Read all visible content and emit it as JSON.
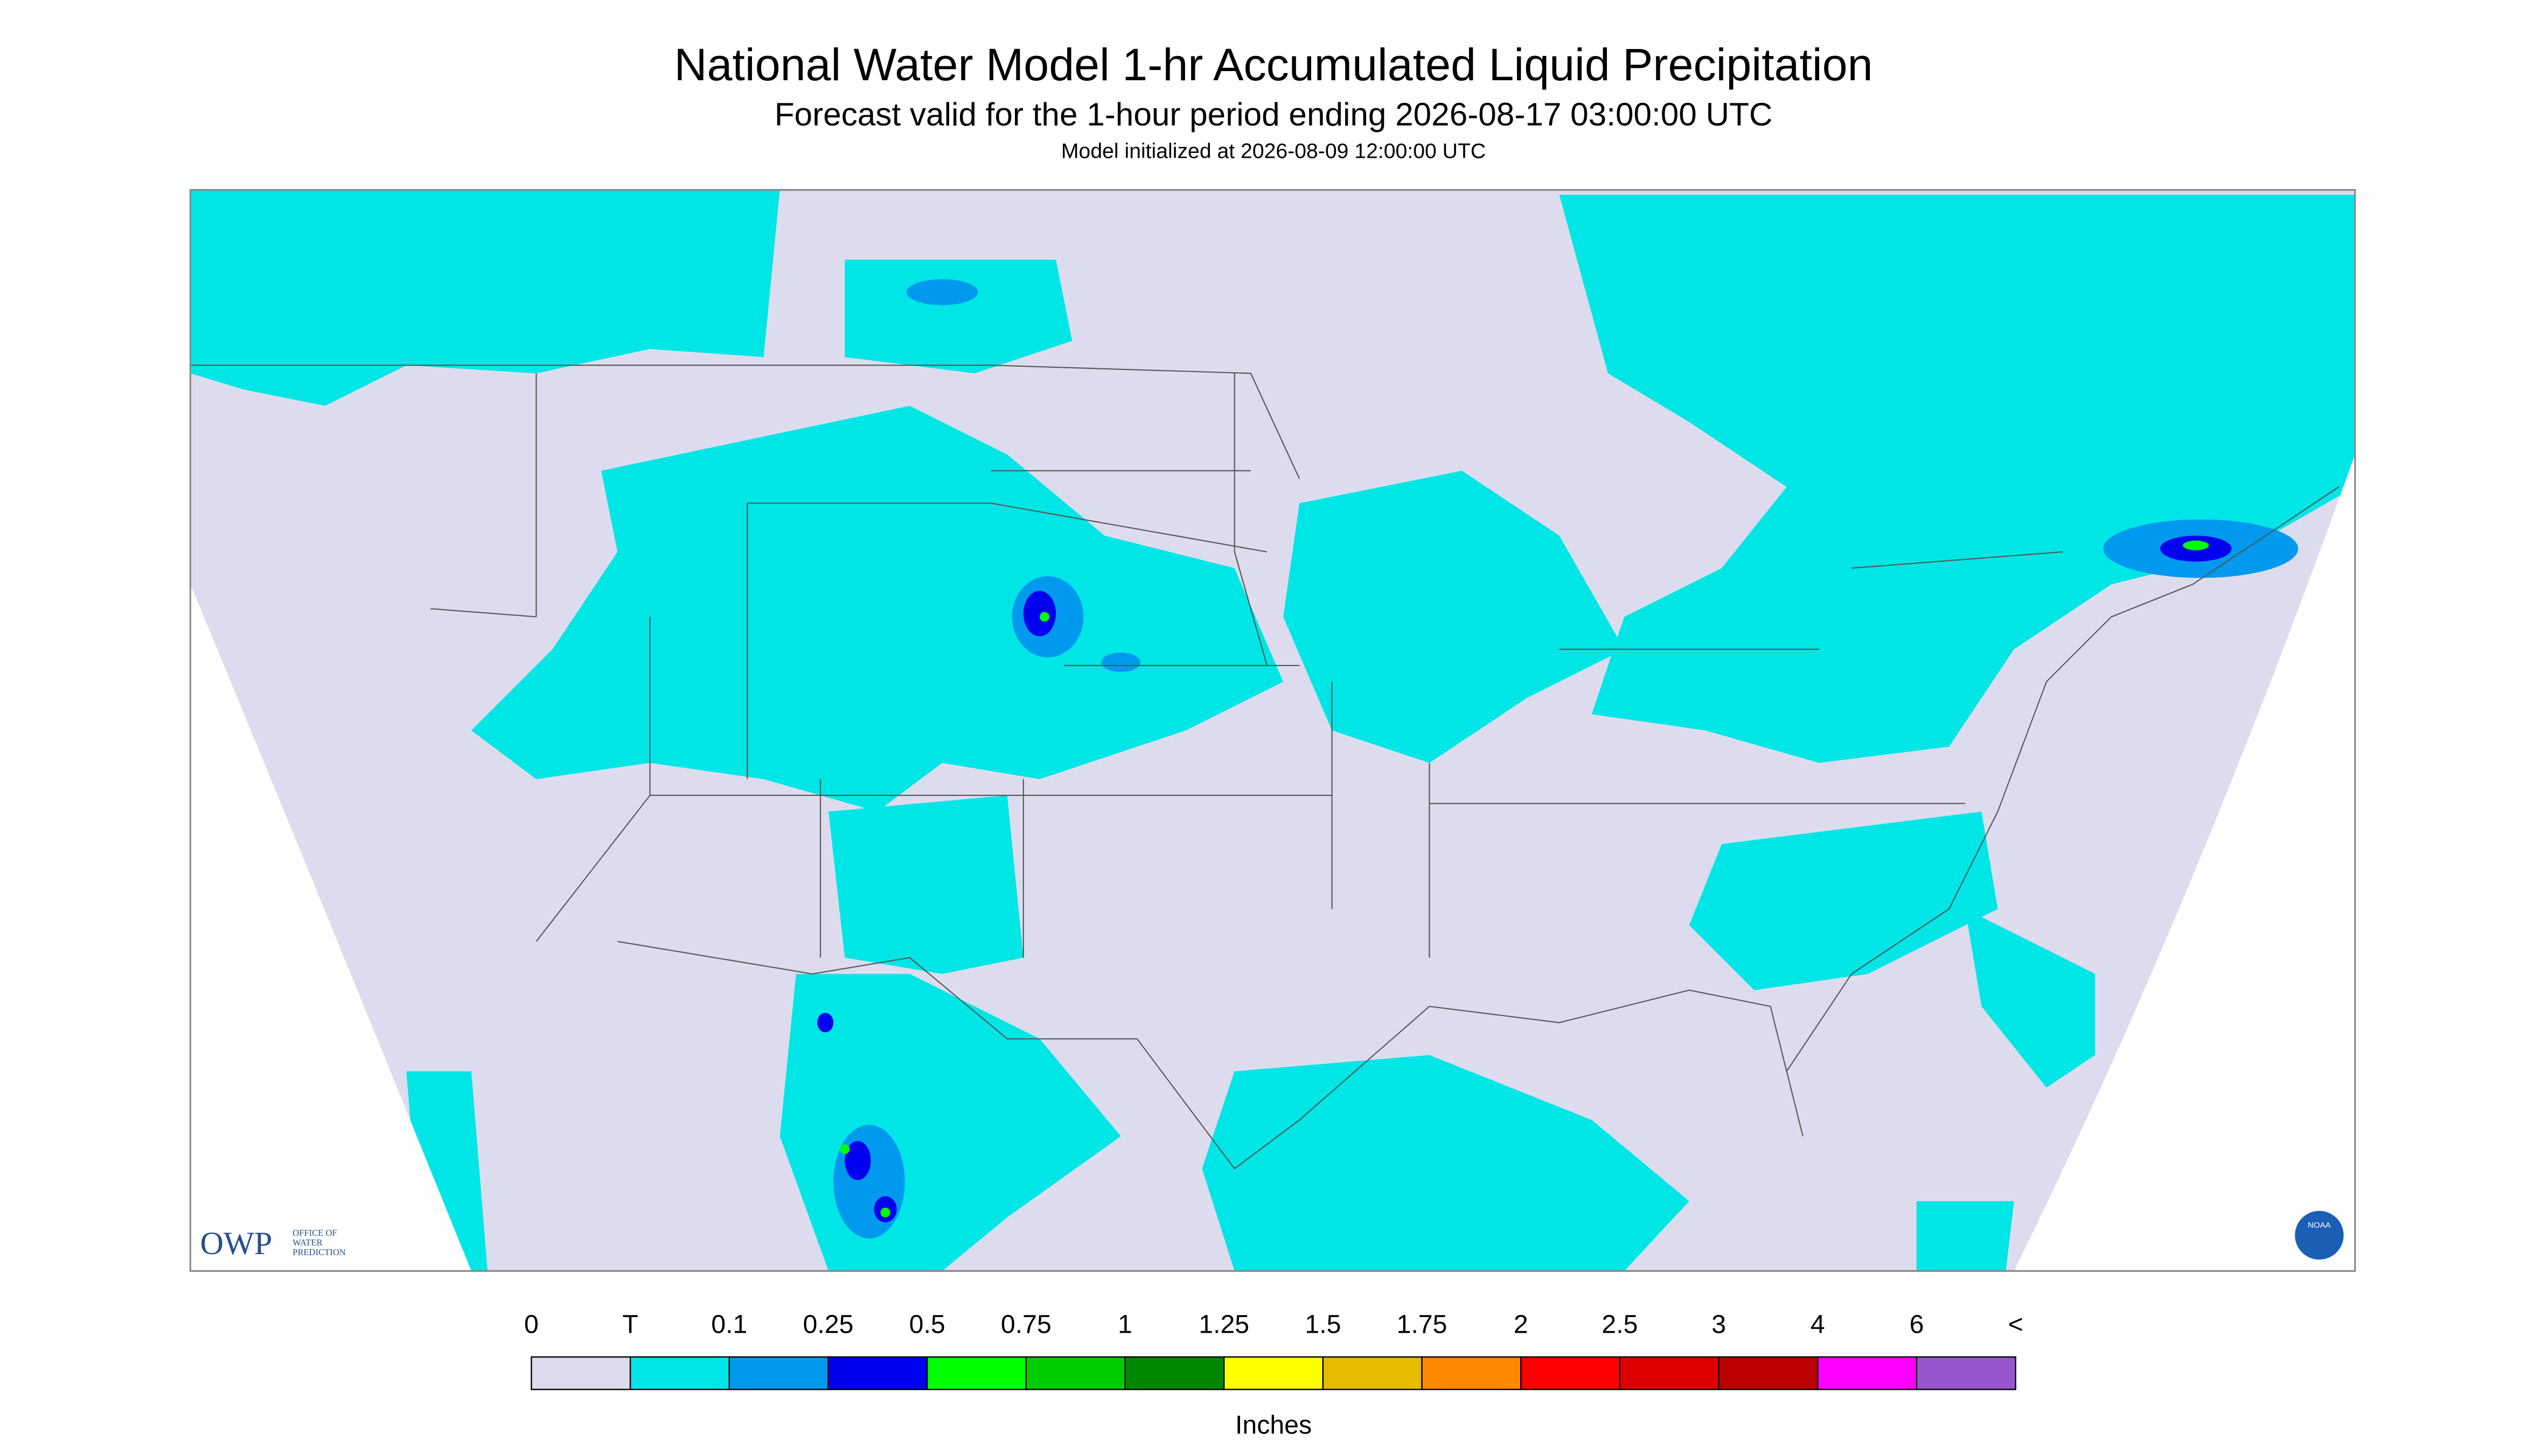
{
  "header": {
    "title": "National Water Model 1-hr Accumulated Liquid Precipitation",
    "subtitle": "Forecast valid for the 1-hour period ending 2026-08-17 03:00:00 UTC",
    "init": "Model initialized at 2026-08-09 12:00:00 UTC"
  },
  "logos": {
    "owp": "OWP",
    "owp_lines": [
      "OFFICE OF",
      "WATER",
      "PREDICTION"
    ],
    "noaa": "NOAA"
  },
  "legend": {
    "labels": [
      "0",
      "T",
      "0.1",
      "0.25",
      "0.5",
      "0.75",
      "1",
      "1.25",
      "1.5",
      "1.75",
      "2",
      "2.5",
      "3",
      "4",
      "6",
      "<"
    ],
    "colors": [
      "#dcdcee",
      "#00e6e6",
      "#0099ee",
      "#0000ee",
      "#00ff00",
      "#00cc00",
      "#008800",
      "#ffff00",
      "#e6bb00",
      "#ff8800",
      "#ff0000",
      "#dd0000",
      "#bb0000",
      "#ff00ff",
      "#9955cc"
    ],
    "unit": "Inches"
  }
}
